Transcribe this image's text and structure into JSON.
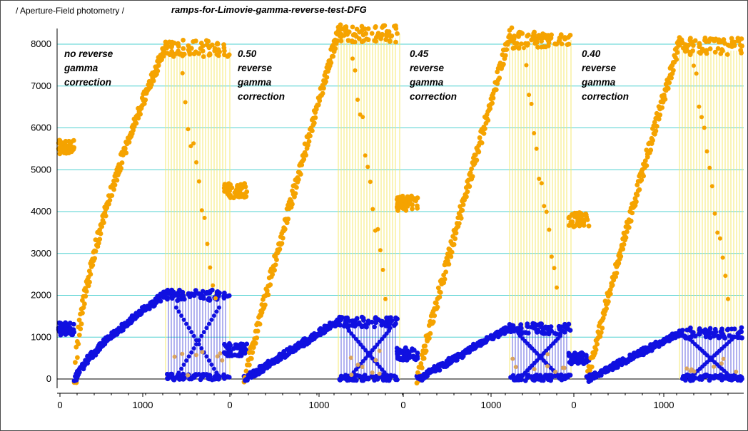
{
  "header": {
    "left_label": "/ Aperture-Field photometry /",
    "title": "ramps-for-Limovie-gamma-reverse-test-DFG"
  },
  "annotations": [
    "no reverse\ngamma\ncorrection",
    "0.50\nreverse\ngamma\ncorrection",
    "0.45\nreverse\ngamma\ncorrection",
    "0.40\nreverse\ngamma\ncorrection"
  ],
  "colors": {
    "orange": "#f5a300",
    "blue": "#1010e0",
    "yellow_line": "#f5e870",
    "blue_line": "#4040d8",
    "gridline": "#4fd0d0",
    "tan": "#d9a460"
  },
  "chart_data": {
    "type": "scatter",
    "title": "ramps-for-Limovie-gamma-reverse-test-DFG",
    "ylim": [
      -250,
      8500
    ],
    "y_ticks": [
      0,
      1000,
      2000,
      3000,
      4000,
      5000,
      6000,
      7000,
      8000
    ],
    "x_tick_labels": [
      "0",
      "1000",
      "0",
      "1000",
      "0",
      "1000",
      "0",
      "1000"
    ],
    "grid": true,
    "segments": [
      {
        "label": "no reverse gamma correction",
        "ramp_x": [
          0,
          1000
        ],
        "orange_plateau": 5550,
        "orange_ramp": [
          0,
          8000
        ],
        "orange_top": 7900,
        "blue_plateau": 1200,
        "blue_ramp": [
          0,
          2050
        ],
        "blue_top": 2000,
        "blue_bottom": 50
      },
      {
        "label": "0.50 reverse gamma correction",
        "orange_plateau": 4500,
        "orange_ramp": [
          0,
          8400
        ],
        "orange_top": 8250,
        "blue_plateau": 700,
        "blue_ramp": [
          0,
          1400
        ],
        "blue_top": 1350,
        "blue_bottom": 30
      },
      {
        "label": "0.45 reverse gamma correction",
        "orange_plateau": 4200,
        "orange_ramp": [
          0,
          8300
        ],
        "orange_top": 8100,
        "blue_plateau": 600,
        "blue_ramp": [
          0,
          1250
        ],
        "blue_top": 1200,
        "blue_bottom": 30
      },
      {
        "label": "0.40 reverse gamma correction",
        "orange_plateau": 3800,
        "orange_ramp": [
          0,
          8150
        ],
        "orange_top": 7950,
        "blue_plateau": 500,
        "blue_ramp": [
          0,
          1100
        ],
        "blue_top": 1100,
        "blue_bottom": 30
      }
    ]
  }
}
